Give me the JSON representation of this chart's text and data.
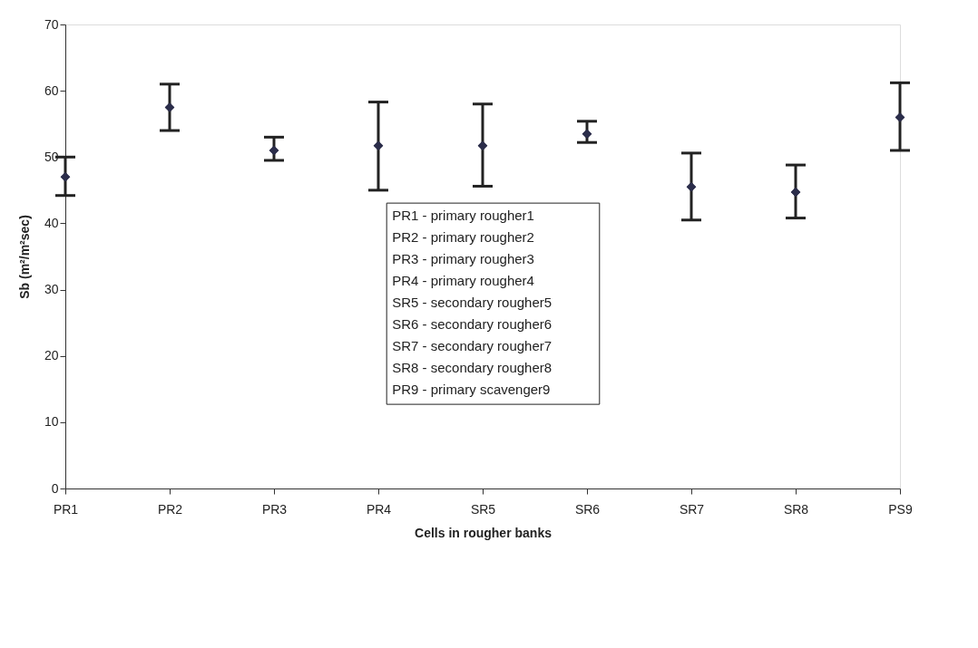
{
  "chart_data": {
    "type": "scatter",
    "xlabel": "Cells in rougher banks",
    "ylabel": "Sb (m²/m²sec)",
    "categories": [
      "PR1",
      "PR2",
      "PR3",
      "PR4",
      "SR5",
      "SR6",
      "SR7",
      "SR8",
      "PS9"
    ],
    "values": [
      47,
      57.5,
      51,
      51.7,
      51.7,
      53.5,
      45.5,
      44.7,
      56
    ],
    "errors": [
      [
        44.2,
        50
      ],
      [
        54,
        61
      ],
      [
        49.5,
        53
      ],
      [
        45,
        58.3
      ],
      [
        45.6,
        58
      ],
      [
        52.2,
        55.4
      ],
      [
        40.5,
        50.6
      ],
      [
        40.8,
        48.8
      ],
      [
        51,
        61.2
      ]
    ],
    "color": "#2b2d4a",
    "marker": "diamond",
    "ylim": [
      0,
      70
    ],
    "yticks": [
      0,
      10,
      20,
      30,
      40,
      50,
      60,
      70
    ],
    "grid": false,
    "annotations": [
      "PR1 - primary rougher1",
      "PR2 - primary rougher2",
      "PR3 - primary rougher3",
      "PR4 - primary rougher4",
      "SR5 - secondary rougher5",
      "SR6 - secondary rougher6",
      "SR7 - secondary rougher7",
      "SR8 - secondary rougher8",
      "PR9 - primary scavenger9"
    ]
  }
}
